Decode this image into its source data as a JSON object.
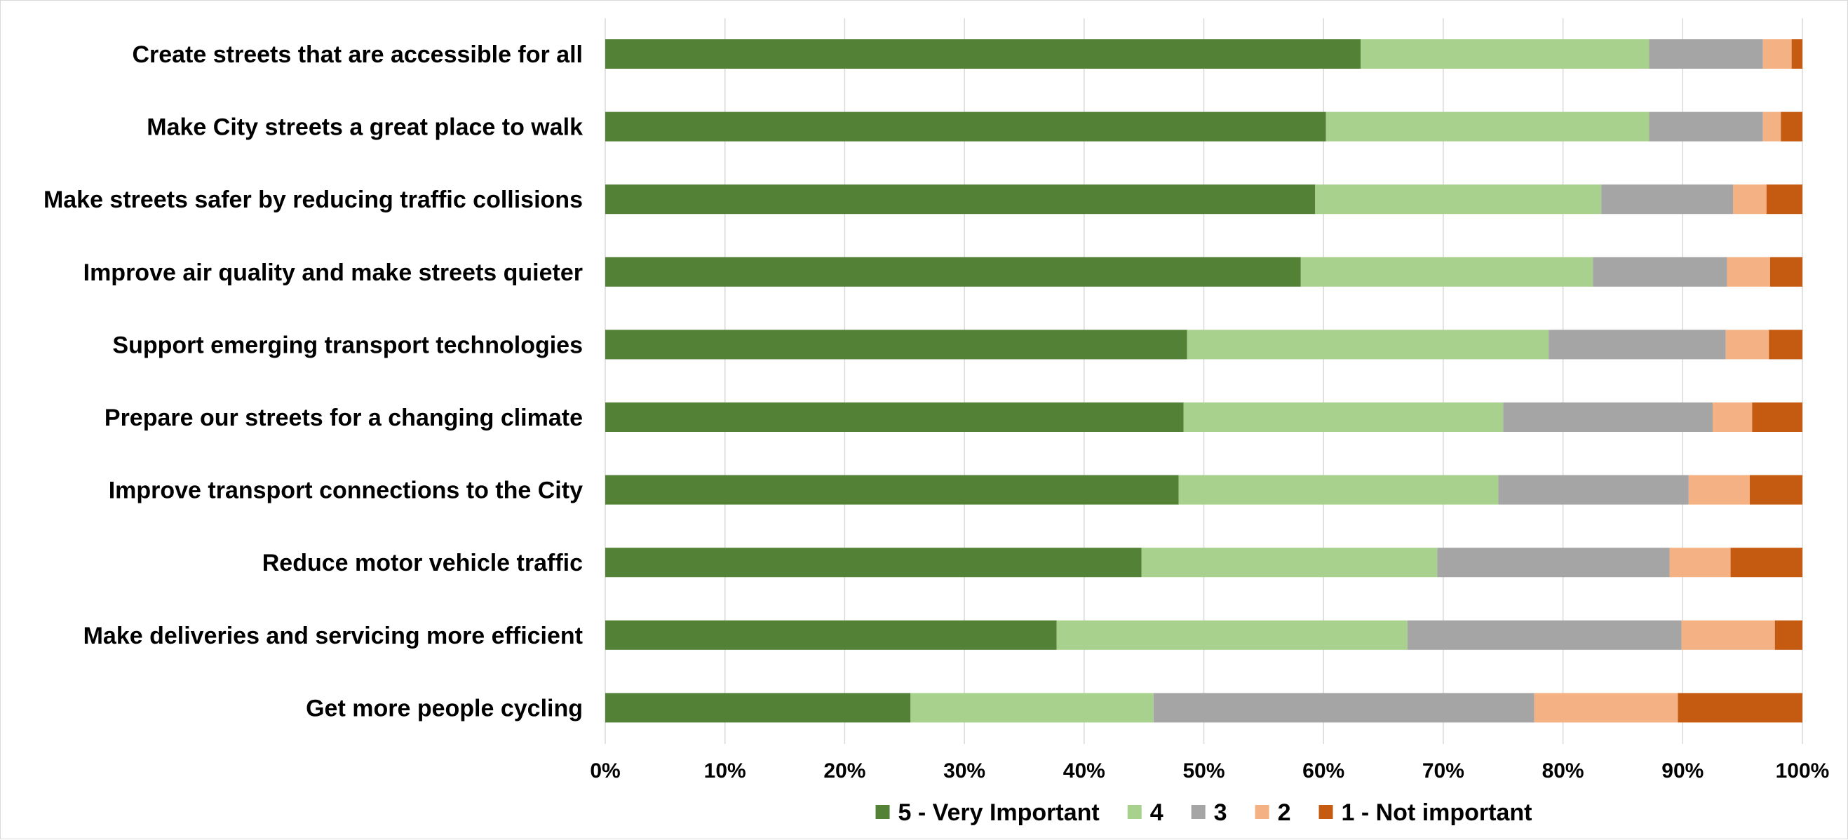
{
  "chart_data": {
    "type": "bar",
    "orientation": "horizontal",
    "stacked": true,
    "percent_stacked": true,
    "title": "",
    "xlabel": "",
    "ylabel": "",
    "xlim": [
      0,
      100
    ],
    "x_ticks": [
      "0%",
      "10%",
      "20%",
      "30%",
      "40%",
      "50%",
      "60%",
      "70%",
      "80%",
      "90%",
      "100%"
    ],
    "grid": true,
    "legend_position": "bottom",
    "categories": [
      "Create streets that are accessible for all",
      "Make City streets a great place to walk",
      "Make streets safer by reducing traffic collisions",
      "Improve air quality and make streets quieter",
      "Support emerging transport technologies",
      "Prepare our streets for a changing climate",
      "Improve transport connections to the City",
      "Reduce motor vehicle traffic",
      "Make deliveries and servicing more efficient",
      "Get more people cycling"
    ],
    "series": [
      {
        "name": "5 - Very Important",
        "color": "#538135",
        "values": [
          63.1,
          60.2,
          59.3,
          58.1,
          48.6,
          48.3,
          47.9,
          44.8,
          37.7,
          25.5
        ]
      },
      {
        "name": "4",
        "color": "#a9d18e",
        "values": [
          24.1,
          27.0,
          23.9,
          24.4,
          30.2,
          26.7,
          26.7,
          24.7,
          29.3,
          20.3
        ]
      },
      {
        "name": "3",
        "color": "#a5a5a5",
        "values": [
          9.5,
          9.5,
          11.0,
          11.2,
          14.8,
          17.5,
          15.9,
          19.4,
          22.9,
          31.8
        ]
      },
      {
        "name": "2",
        "color": "#f4b183",
        "values": [
          2.4,
          1.5,
          2.8,
          3.6,
          3.6,
          3.3,
          5.1,
          5.1,
          7.8,
          12.0
        ]
      },
      {
        "name": "1 - Not important",
        "color": "#c55a11",
        "values": [
          0.9,
          1.8,
          3.0,
          2.7,
          2.8,
          4.2,
          4.4,
          6.0,
          2.3,
          10.4
        ]
      }
    ]
  }
}
